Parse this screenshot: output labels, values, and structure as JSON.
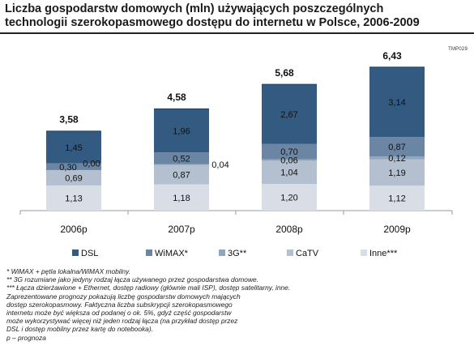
{
  "title_lines": [
    "Liczba gospodarstw domowych (mln) używających poszczególnych",
    "technologii szerokopasmowego dostępu do internetu w Polsce, 2006-2009"
  ],
  "code": "TMP029",
  "chart_data": {
    "type": "bar",
    "stacked": true,
    "title": "Liczba gospodarstw domowych (mln) używających poszczególnych technologii szerokopasmowego dostępu do internetu w Polsce, 2006-2009",
    "categories": [
      "2006p",
      "2007p",
      "2008p",
      "2009p"
    ],
    "series": [
      {
        "name": "Inne***",
        "color": "#d9dee6",
        "values": [
          1.13,
          1.18,
          1.2,
          1.12
        ],
        "labels": [
          "1,13",
          "1,18",
          "1,20",
          "1,12"
        ]
      },
      {
        "name": "CaTV",
        "color": "#b4c0cf",
        "values": [
          0.69,
          0.87,
          1.04,
          1.19
        ],
        "labels": [
          "0,69",
          "0,87",
          "1,04",
          "1,19"
        ]
      },
      {
        "name": "3G**",
        "color": "#8fa5bb",
        "values": [
          0.0,
          0.04,
          0.06,
          0.12
        ],
        "labels": [
          "0,00",
          "0,04",
          "0,06",
          "0,12"
        ]
      },
      {
        "name": "WiMAX*",
        "color": "#6a86a4",
        "values": [
          0.3,
          0.52,
          0.7,
          0.87
        ],
        "labels": [
          "0,30",
          "0,52",
          "0,70",
          "0,87"
        ]
      },
      {
        "name": "DSL",
        "color": "#335a81",
        "values": [
          1.45,
          1.96,
          2.67,
          3.14
        ],
        "labels": [
          "1,45",
          "1,96",
          "2,67",
          "3,14"
        ]
      }
    ],
    "totals": [
      3.58,
      4.58,
      5.68,
      6.43
    ],
    "total_labels": [
      "3,58",
      "4,58",
      "5,68",
      "6,43"
    ],
    "legend": [
      {
        "name": "DSL",
        "color": "#335a81"
      },
      {
        "name": "WiMAX*",
        "color": "#6a86a4"
      },
      {
        "name": "3G**",
        "color": "#8fa5bb"
      },
      {
        "name": "CaTV",
        "color": "#b4c0cf"
      },
      {
        "name": "Inne***",
        "color": "#d9dee6"
      }
    ],
    "legend_position": "bottom",
    "grid": false,
    "ylim": [
      0,
      7
    ]
  },
  "footnotes": [
    "* WiMAX + pętla lokalna/WiMAX mobilny.",
    "** 3G rozumiane jako jedyny rodzaj łącza używanego przez gospodarstwa domowe.",
    "*** Łącza dzierżawione + Ethernet, dostęp radiowy (głównie mali ISP), dostęp satelitarny, inne.",
    "Zaprezentowane prognozy pokazują liczbę gospodarstw domowych mających",
    "dostęp szerokopasmowy. Faktyczna liczba subskrypcji szerokopasmowego",
    "internetu może być większa od podanej o ok. 5%, gdyż część gospodarstw",
    "może wykorzystywać więcej niż jeden rodzaj łącza (na przykład dostęp przez",
    "DSL i dostęp mobilny przez kartę do notebooka).",
    "p – prognoza"
  ]
}
